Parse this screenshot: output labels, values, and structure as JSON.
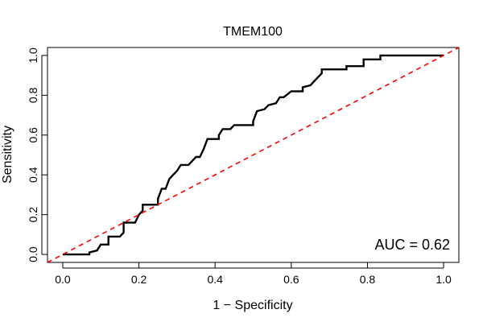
{
  "chart_data": {
    "type": "line",
    "title": "TMEM100",
    "xlabel": "1 − Specificity",
    "ylabel": "Sensitivity",
    "xlim": [
      -0.04,
      1.04
    ],
    "ylim": [
      -0.04,
      1.04
    ],
    "xticks": [
      "0.0",
      "0.2",
      "0.4",
      "0.6",
      "0.8",
      "1.0"
    ],
    "yticks": [
      "0.0",
      "0.2",
      "0.4",
      "0.6",
      "0.8",
      "1.0"
    ],
    "annotation": "AUC = 0.62",
    "grid": false,
    "series": [
      {
        "color": "#000000",
        "style": "step",
        "points": [
          [
            0,
            0
          ],
          [
            0.07,
            0
          ],
          [
            0.07,
            0.01
          ],
          [
            0.09,
            0.02
          ],
          [
            0.1,
            0.05
          ],
          [
            0.12,
            0.05
          ],
          [
            0.12,
            0.09
          ],
          [
            0.15,
            0.09
          ],
          [
            0.16,
            0.11
          ],
          [
            0.16,
            0.16
          ],
          [
            0.19,
            0.16
          ],
          [
            0.2,
            0.2
          ],
          [
            0.21,
            0.22
          ],
          [
            0.21,
            0.25
          ],
          [
            0.25,
            0.25
          ],
          [
            0.25,
            0.28
          ],
          [
            0.26,
            0.33
          ],
          [
            0.27,
            0.33
          ],
          [
            0.28,
            0.38
          ],
          [
            0.29,
            0.4
          ],
          [
            0.3,
            0.42
          ],
          [
            0.31,
            0.45
          ],
          [
            0.33,
            0.45
          ],
          [
            0.34,
            0.47
          ],
          [
            0.35,
            0.49
          ],
          [
            0.36,
            0.49
          ],
          [
            0.37,
            0.53
          ],
          [
            0.38,
            0.58
          ],
          [
            0.41,
            0.58
          ],
          [
            0.41,
            0.6
          ],
          [
            0.42,
            0.63
          ],
          [
            0.44,
            0.63
          ],
          [
            0.45,
            0.65
          ],
          [
            0.5,
            0.65
          ],
          [
            0.5,
            0.67
          ],
          [
            0.51,
            0.72
          ],
          [
            0.53,
            0.73
          ],
          [
            0.54,
            0.75
          ],
          [
            0.56,
            0.76
          ],
          [
            0.57,
            0.79
          ],
          [
            0.58,
            0.79
          ],
          [
            0.6,
            0.82
          ],
          [
            0.63,
            0.82
          ],
          [
            0.63,
            0.84
          ],
          [
            0.65,
            0.85
          ],
          [
            0.66,
            0.87
          ],
          [
            0.67,
            0.89
          ],
          [
            0.68,
            0.91
          ],
          [
            0.68,
            0.93
          ],
          [
            0.745,
            0.93
          ],
          [
            0.745,
            0.946
          ],
          [
            0.79,
            0.946
          ],
          [
            0.79,
            0.98
          ],
          [
            0.834,
            0.98
          ],
          [
            0.834,
            1.0
          ],
          [
            1.0,
            1.0
          ]
        ]
      },
      {
        "color": "#ff0000",
        "style": "dashed",
        "points": [
          [
            -0.04,
            -0.04
          ],
          [
            1.04,
            1.04
          ]
        ]
      }
    ]
  }
}
